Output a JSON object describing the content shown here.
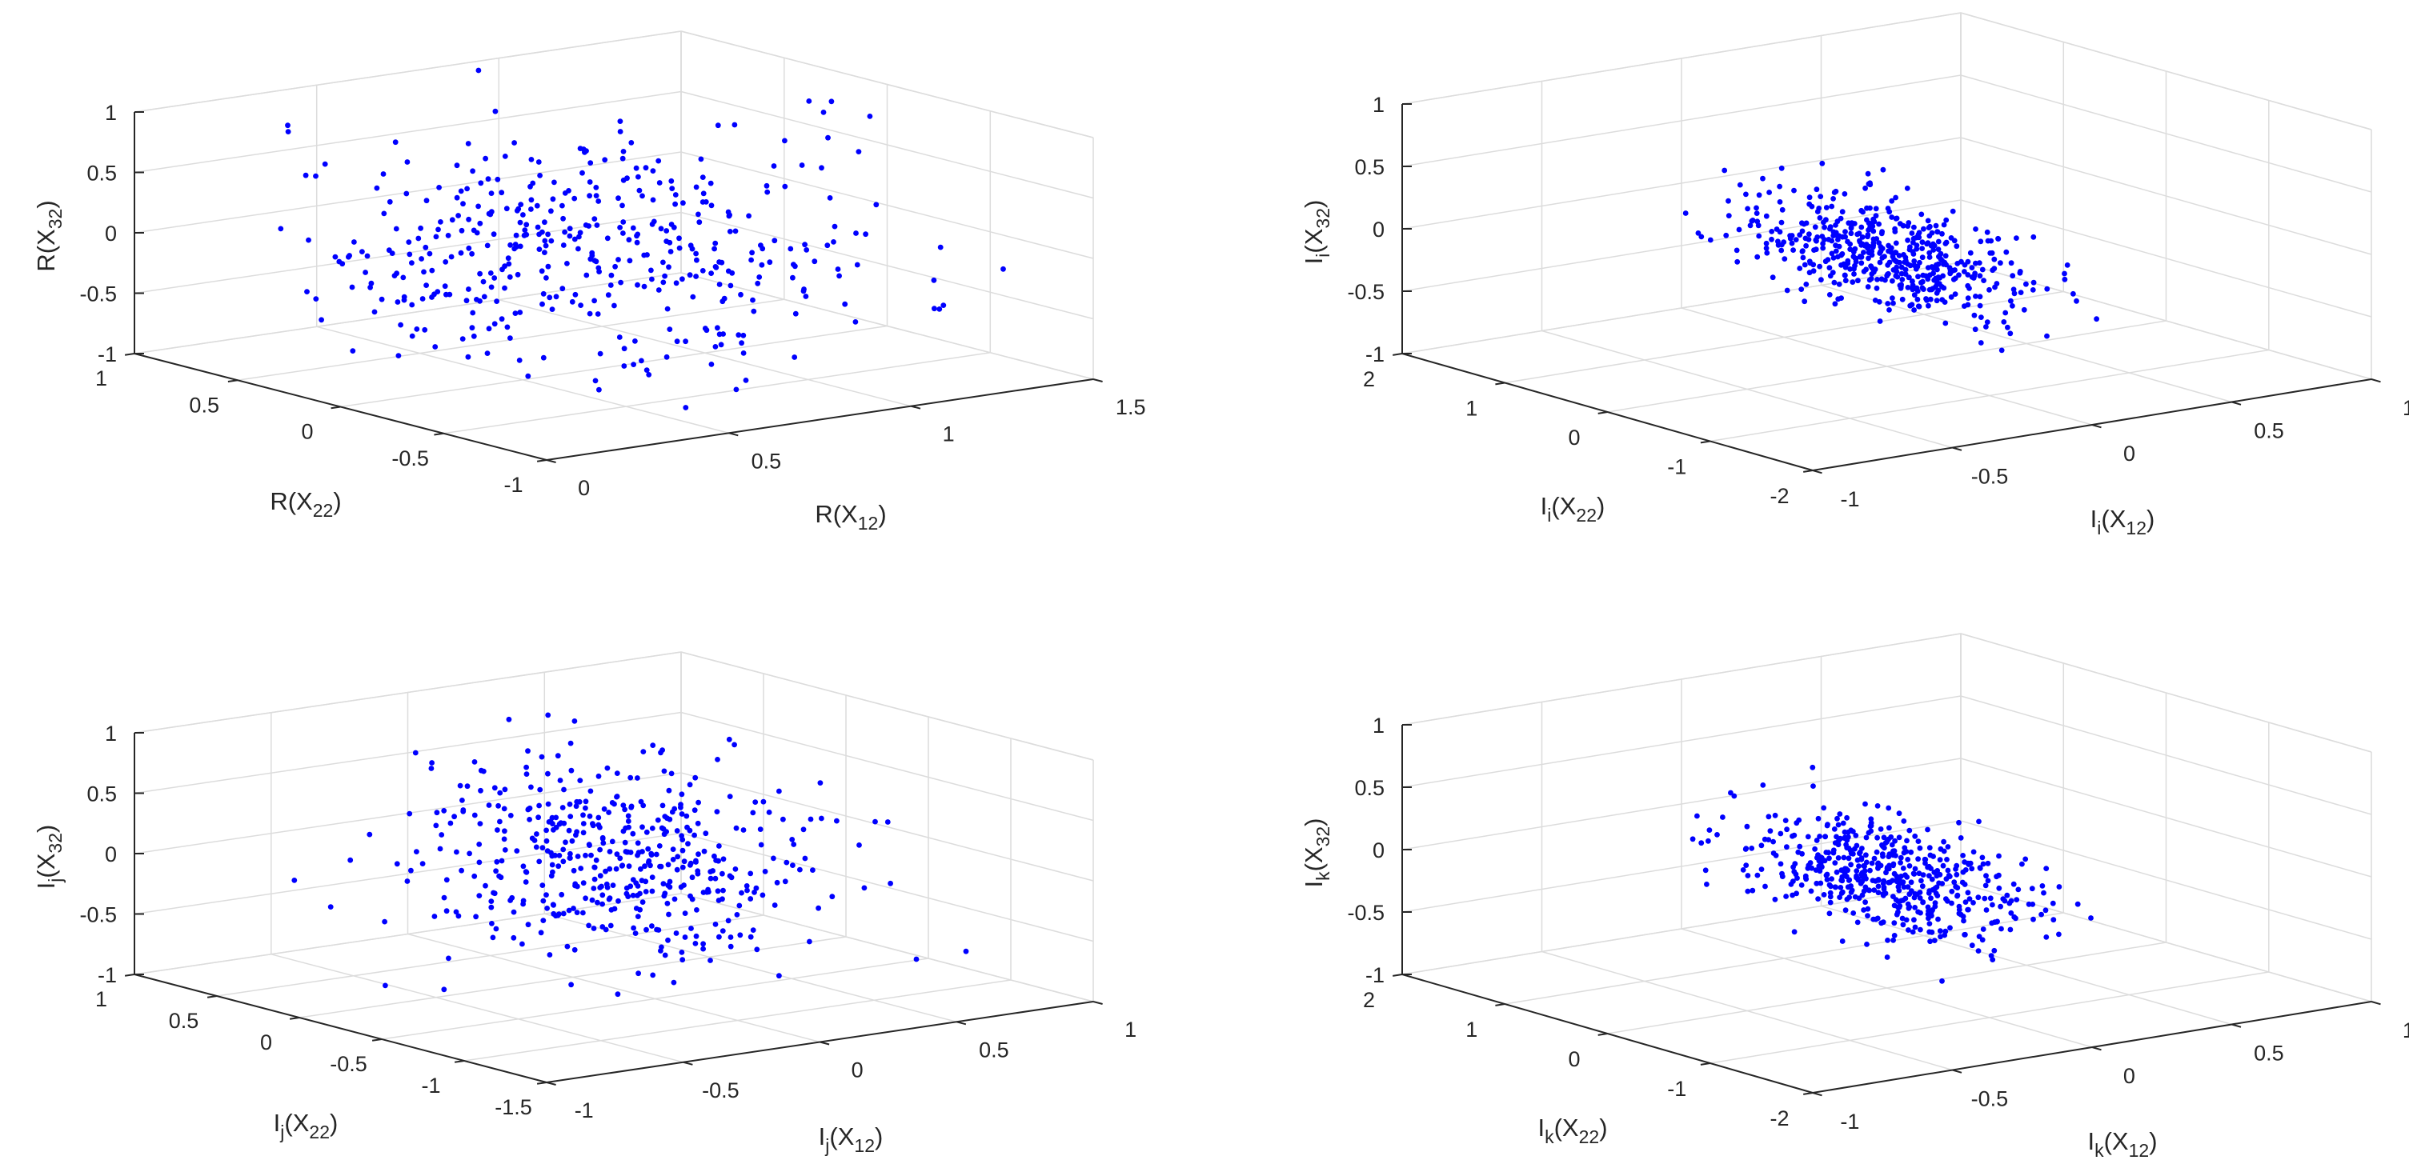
{
  "chart_data": [
    {
      "type": "scatter",
      "panel": "top-left",
      "xlabel": {
        "base": "R(X",
        "sub": "12",
        "tail": ")"
      },
      "ylabel": {
        "base": "R(X",
        "sub": "22",
        "tail": ")"
      },
      "zlabel": {
        "base": "R(X",
        "sub": "32",
        "tail": ")"
      },
      "xlim": [
        0,
        1.5
      ],
      "ylim": [
        -1,
        1
      ],
      "zlim": [
        -1,
        1
      ],
      "xticks": [
        "0",
        "0.5",
        "1",
        "1.5"
      ],
      "xtick_values": [
        0,
        0.5,
        1,
        1.5
      ],
      "yticks": [
        "-1",
        "-0.5",
        "0",
        "0.5",
        "1"
      ],
      "ytick_values": [
        -1,
        -0.5,
        0,
        0.5,
        1
      ],
      "zticks": [
        "-1",
        "-0.5",
        "0",
        "0.5",
        "1"
      ],
      "ztick_values": [
        -1,
        -0.5,
        0,
        0.5,
        1
      ],
      "marker_color": "#0000ff",
      "n_points": 420,
      "distribution": {
        "x_mean": 0.65,
        "x_sd": 0.3,
        "y_mean": 0.0,
        "y_sd": 0.45,
        "z_mean": 0.0,
        "z_sd": 0.45,
        "corr_xz": 0.0
      }
    },
    {
      "type": "scatter",
      "panel": "top-right",
      "xlabel": {
        "base": "I",
        "basesub": "i",
        "mid": "(X",
        "sub": "12",
        "tail": ")"
      },
      "ylabel": {
        "base": "I",
        "basesub": "i",
        "mid": "(X",
        "sub": "22",
        "tail": ")"
      },
      "zlabel": {
        "base": "I",
        "basesub": "i",
        "mid": "(X",
        "sub": "32",
        "tail": ")"
      },
      "xlim": [
        -1,
        1
      ],
      "ylim": [
        -2,
        2
      ],
      "zlim": [
        -1,
        1
      ],
      "xticks": [
        "-1",
        "-0.5",
        "0",
        "0.5",
        "1"
      ],
      "xtick_values": [
        -1,
        -0.5,
        0,
        0.5,
        1
      ],
      "yticks": [
        "-2",
        "-1",
        "0",
        "1",
        "2"
      ],
      "ytick_values": [
        -2,
        -1,
        0,
        1,
        2
      ],
      "zticks": [
        "-1",
        "-0.5",
        "0",
        "0.5",
        "1"
      ],
      "ztick_values": [
        -1,
        -0.5,
        0,
        0.5,
        1
      ],
      "marker_color": "#0000ff",
      "n_points": 520,
      "distribution": {
        "x_mean": 0.0,
        "x_sd": 0.22,
        "y_mean": 0.0,
        "y_sd": 0.35,
        "z_mean": -0.1,
        "z_sd": 0.28,
        "corr_xz": -0.6
      }
    },
    {
      "type": "scatter",
      "panel": "bottom-left",
      "xlabel": {
        "base": "I",
        "basesub": "j",
        "mid": "(X",
        "sub": "12",
        "tail": ")"
      },
      "ylabel": {
        "base": "I",
        "basesub": "j",
        "mid": "(X",
        "sub": "22",
        "tail": ")"
      },
      "zlabel": {
        "base": "I",
        "basesub": "j",
        "mid": "(X",
        "sub": "32",
        "tail": ")"
      },
      "xlim": [
        -1,
        1
      ],
      "ylim": [
        -1.5,
        1
      ],
      "zlim": [
        -1,
        1
      ],
      "xticks": [
        "-1",
        "-0.5",
        "0",
        "0.5",
        "1"
      ],
      "xtick_values": [
        -1,
        -0.5,
        0,
        0.5,
        1
      ],
      "yticks": [
        "-1.5",
        "-1",
        "-0.5",
        "0",
        "0.5",
        "1"
      ],
      "ytick_values": [
        -1.5,
        -1,
        -0.5,
        0,
        0.5,
        1
      ],
      "zticks": [
        "-1",
        "-0.5",
        "0",
        "0.5",
        "1"
      ],
      "ztick_values": [
        -1,
        -0.5,
        0,
        0.5,
        1
      ],
      "marker_color": "#0000ff",
      "n_points": 480,
      "distribution": {
        "x_mean": -0.05,
        "x_sd": 0.25,
        "y_mean": -0.3,
        "y_sd": 0.4,
        "z_mean": 0.1,
        "z_sd": 0.42,
        "corr_xz": -0.1
      }
    },
    {
      "type": "scatter",
      "panel": "bottom-right",
      "xlabel": {
        "base": "I",
        "basesub": "k",
        "mid": "(X",
        "sub": "12",
        "tail": ")"
      },
      "ylabel": {
        "base": "I",
        "basesub": "k",
        "mid": "(X",
        "sub": "22",
        "tail": ")"
      },
      "zlabel": {
        "base": "I",
        "basesub": "k",
        "mid": "(X",
        "sub": "32",
        "tail": ")"
      },
      "xlim": [
        -1,
        1
      ],
      "ylim": [
        -2,
        2
      ],
      "zlim": [
        -1,
        1
      ],
      "xticks": [
        "-1",
        "-0.5",
        "0",
        "0.5",
        "1"
      ],
      "xtick_values": [
        -1,
        -0.5,
        0,
        0.5,
        1
      ],
      "yticks": [
        "-2",
        "-1",
        "0",
        "1",
        "2"
      ],
      "ytick_values": [
        -2,
        -1,
        0,
        1,
        2
      ],
      "zticks": [
        "-1",
        "-0.5",
        "0",
        "0.5",
        "1"
      ],
      "ztick_values": [
        -1,
        -0.5,
        0,
        0.5,
        1
      ],
      "marker_color": "#0000ff",
      "n_points": 520,
      "distribution": {
        "x_mean": 0.0,
        "x_sd": 0.22,
        "y_mean": 0.0,
        "y_sd": 0.35,
        "z_mean": -0.1,
        "z_sd": 0.28,
        "corr_xz": -0.6
      }
    }
  ]
}
